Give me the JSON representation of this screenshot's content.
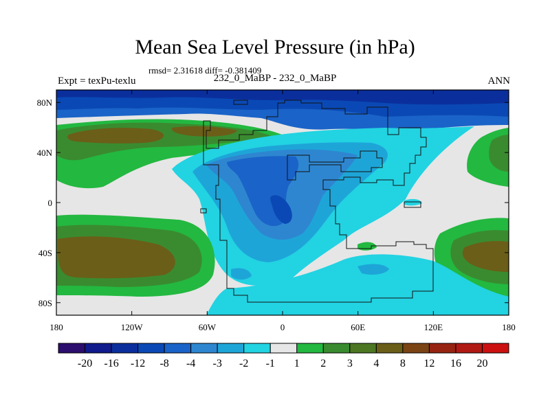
{
  "title": "Mean Sea Level Pressure (in hPa)",
  "stats": "rmsd= 2.31618 diff= -0.381409",
  "left_label": "Expt = texPu-texlu",
  "center_label": "232_0_MaBP - 232_0_MaBP",
  "right_label": "ANN",
  "map": {
    "lon_range": [
      -180,
      180
    ],
    "lat_range": [
      -90,
      90
    ],
    "lon_ticks": [
      {
        "value": -180,
        "label": "180"
      },
      {
        "value": -120,
        "label": "120W"
      },
      {
        "value": -60,
        "label": "60W"
      },
      {
        "value": 0,
        "label": "0"
      },
      {
        "value": 60,
        "label": "60E"
      },
      {
        "value": 120,
        "label": "120E"
      },
      {
        "value": 180,
        "label": "180"
      }
    ],
    "lat_ticks": [
      {
        "value": 80,
        "label": "80N"
      },
      {
        "value": 40,
        "label": "40N"
      },
      {
        "value": 0,
        "label": "0"
      },
      {
        "value": -40,
        "label": "40S"
      },
      {
        "value": -80,
        "label": "80S"
      }
    ]
  },
  "colorbar": {
    "colors": [
      "#2b0e6e",
      "#101b8c",
      "#0a2f9c",
      "#0a49b5",
      "#1a63c8",
      "#2e86d0",
      "#1ea5d8",
      "#22d3e2",
      "#e6e6e6",
      "#23b840",
      "#3a8b2f",
      "#4d7722",
      "#6b5e18",
      "#7b4414",
      "#962411",
      "#b01a12",
      "#cc1010"
    ],
    "labels": [
      "-20",
      "-16",
      "-12",
      "-8",
      "-4",
      "-3",
      "-2",
      "-1",
      "1",
      "2",
      "3",
      "4",
      "8",
      "12",
      "16",
      "20"
    ]
  }
}
